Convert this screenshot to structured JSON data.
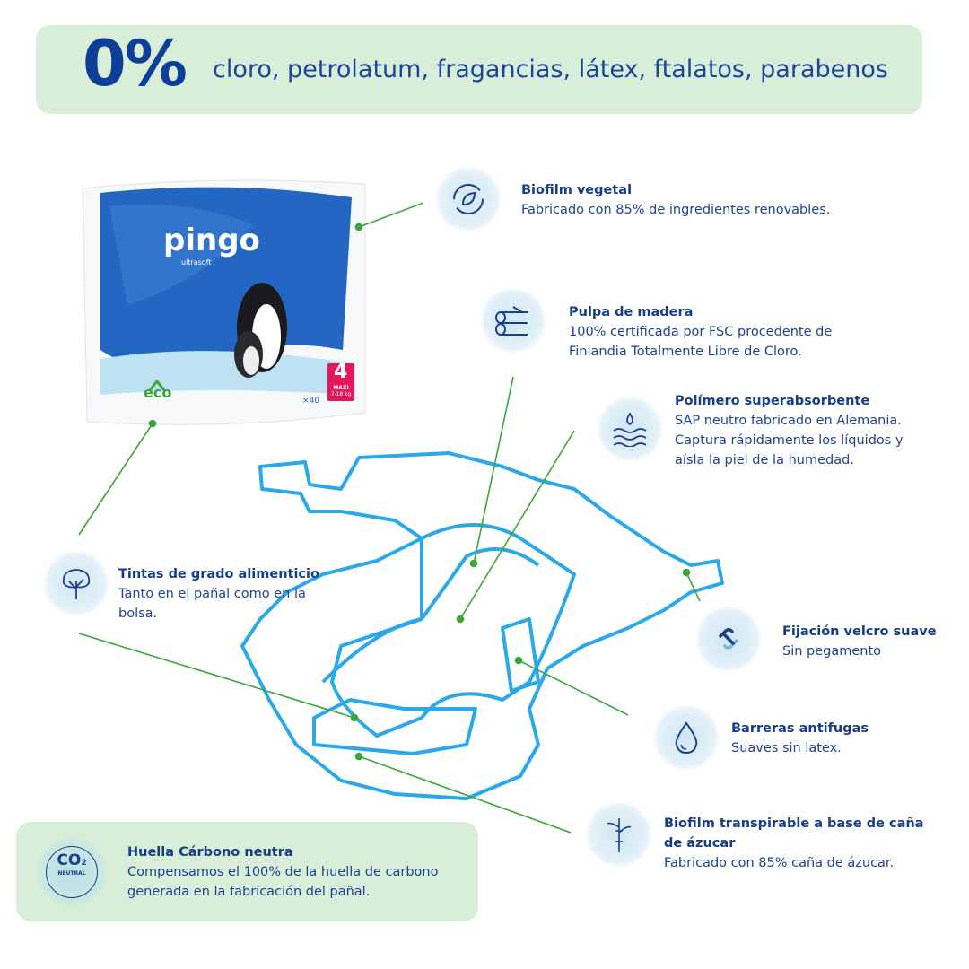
{
  "banner": {
    "big": "0%",
    "text": "cloro, petrolatum, fragancias, látex, ftalatos, parabenos"
  },
  "product": {
    "brand": "pingo",
    "sub": "ultrasoft",
    "eco": "eco",
    "size": "4",
    "size_label": "MAXI",
    "weight": "7-18 kg",
    "count": "×40"
  },
  "features": [
    {
      "icon": "leaf-cycle-icon",
      "title": "Biofilm vegetal",
      "desc": [
        "Fabricado con 85% de ingredientes renovables."
      ]
    },
    {
      "icon": "wood-logs-icon",
      "title": "Pulpa de madera",
      "desc": [
        "100% certificada por FSC procedente de",
        "Finlandia Totalmente Libre de Cloro."
      ]
    },
    {
      "icon": "absorb-drops-icon",
      "title": "Polímero superabsorbente",
      "desc": [
        "SAP neutro fabricado en Alemania.",
        "Captura rápidamente los líquidos y",
        "aísla la piel de la humedad."
      ]
    },
    {
      "icon": "tree-icon",
      "title": "Tintas de grado alimenticio",
      "desc": [
        "Tanto en el pañal como en la",
        "bolsa."
      ]
    },
    {
      "icon": "link-icon",
      "title": "Fijación velcro suave",
      "desc": [
        "Sin pegamento"
      ]
    },
    {
      "icon": "drop-icon",
      "title": "Barreras antifugas",
      "desc": [
        "Suaves sin latex."
      ]
    },
    {
      "icon": "sugar-cane-icon",
      "title": "Biofilm transpirable a base de caña",
      "title2": "de ázucar",
      "desc": [
        "Fabricado con 85% caña de ázucar."
      ]
    }
  ],
  "co2": {
    "icon": "co2-neutral-icon",
    "badge": "CO",
    "badge_sub": "2",
    "badge_label": "NEUTRAL",
    "title": "Huella Cárbono neutra",
    "desc": [
      "Compensamos el 100% de la huella de carbono",
      "generada en la fabricación del pañal."
    ]
  },
  "colors": {
    "navy": "#173c8a",
    "banner_bg": "#d9eed8",
    "leader_line": "#3aa63a",
    "diaper_outline": "#2aa8e8"
  }
}
